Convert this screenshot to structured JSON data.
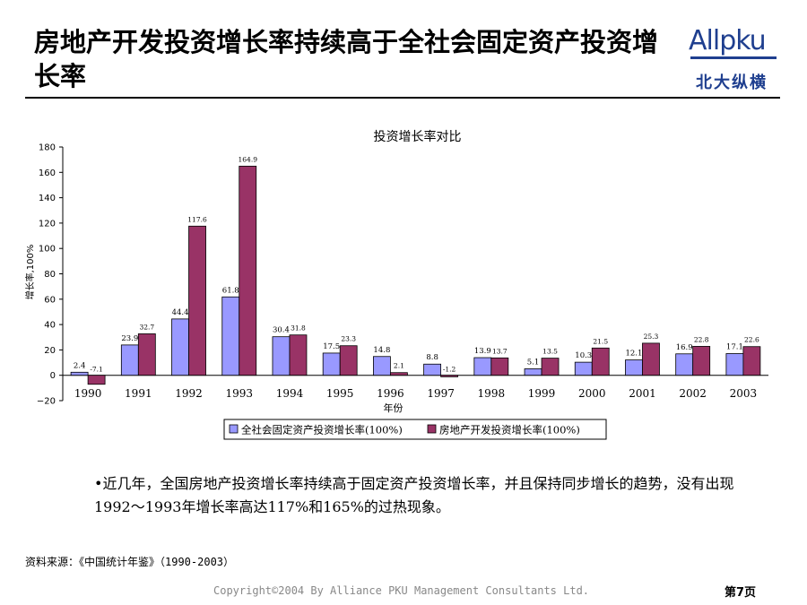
{
  "page": {
    "title": "房地产开发投资增长率持续高于全社会固定资产投资增长率",
    "logo_text": "Allpku",
    "logo_cn": "北大纵横",
    "body": "•近几年，全国房地产投资增长率持续高于固定资产投资增长率，并且保持同步增长的趋势，没有出现1992～1993年增长率高达117%和165%的过热现象。",
    "source": "资料来源：《中国统计年鉴》（1990-2003）",
    "copyright": "Copyright©2004 By Alliance PKU Management Consultants Ltd.",
    "page_number": "第7页"
  },
  "colors": {
    "series1": "#9999ff",
    "series2": "#993366",
    "accent": "#1f3f8f"
  },
  "chart_data": {
    "type": "bar",
    "title": "投资增长率对比",
    "xlabel": "年份",
    "ylabel": "增长率,100%",
    "ylim": [
      -20,
      180
    ],
    "yticks": [
      -20,
      0,
      20,
      40,
      60,
      80,
      100,
      120,
      140,
      160,
      180
    ],
    "categories": [
      "1990",
      "1991",
      "1992",
      "1993",
      "1994",
      "1995",
      "1996",
      "1997",
      "1998",
      "1999",
      "2000",
      "2001",
      "2002",
      "2003"
    ],
    "series": [
      {
        "name": "全社会固定资产投资增长率(100%)",
        "values": [
          2.4,
          23.9,
          44.4,
          61.8,
          30.4,
          17.5,
          14.8,
          8.8,
          13.9,
          5.1,
          10.3,
          12.1,
          16.9,
          17.1
        ]
      },
      {
        "name": "房地产开发投资增长率(100%)",
        "values": [
          -7.1,
          32.7,
          117.6,
          164.9,
          31.8,
          23.3,
          2.1,
          -1.2,
          13.7,
          13.5,
          21.5,
          25.3,
          22.8,
          22.6
        ]
      }
    ],
    "legend_position": "bottom",
    "grid": false
  }
}
